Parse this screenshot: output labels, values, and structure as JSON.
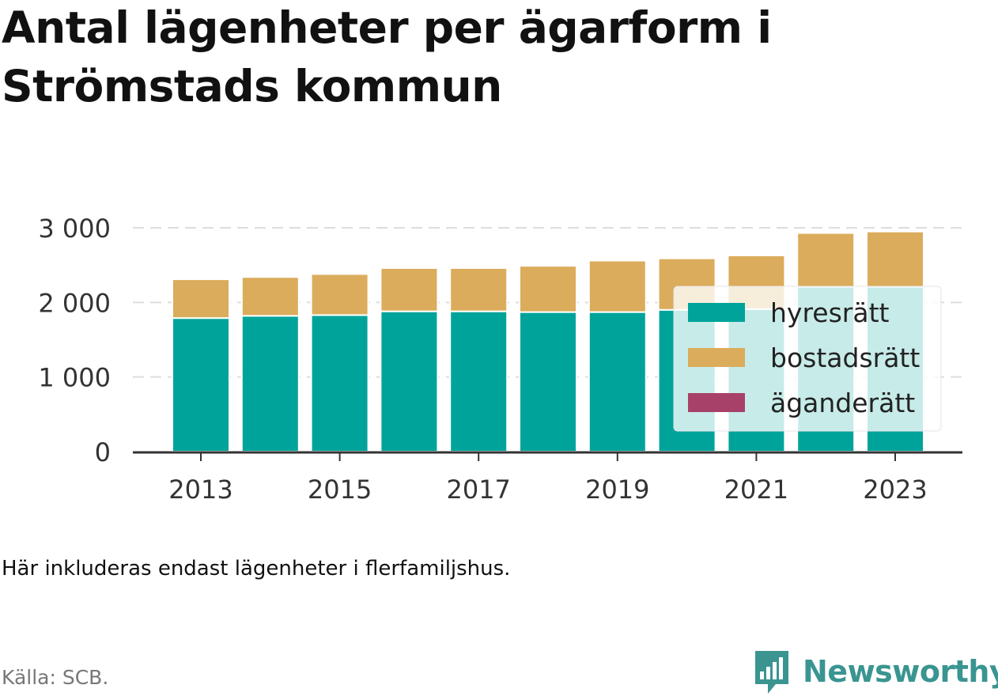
{
  "title": "Antal lägenheter per ägarform i Strömstads kommun",
  "note": "Här inkluderas endast lägenheter i flerfamiljshus.",
  "source": "Källa: SCB.",
  "brand": {
    "name": "Newsworthy",
    "icon": "newsworthy-logo-icon",
    "color": "#3a9591"
  },
  "chart_data": {
    "type": "bar",
    "stacked": true,
    "categories": [
      "2013",
      "2014",
      "2015",
      "2016",
      "2017",
      "2018",
      "2019",
      "2020",
      "2021",
      "2022",
      "2023"
    ],
    "x_tick_labels": [
      "2013",
      "2015",
      "2017",
      "2019",
      "2021",
      "2023"
    ],
    "y_tick_labels": [
      "0",
      "1 000",
      "2 000",
      "3 000"
    ],
    "y_ticks": [
      0,
      1000,
      2000,
      3000
    ],
    "ylim": [
      0,
      3000
    ],
    "grid": true,
    "legend_position": "right",
    "series": [
      {
        "name": "hyresrätt",
        "color": "#00a39a",
        "values": [
          1790,
          1820,
          1830,
          1880,
          1880,
          1870,
          1870,
          1900,
          1910,
          2210,
          2210
        ]
      },
      {
        "name": "bostadsrätt",
        "color": "#dbac5b",
        "values": [
          520,
          520,
          550,
          580,
          580,
          620,
          690,
          690,
          720,
          720,
          740
        ]
      },
      {
        "name": "äganderätt",
        "color": "#a8416a",
        "values": [
          0,
          0,
          0,
          0,
          0,
          0,
          0,
          0,
          0,
          0,
          0
        ]
      }
    ]
  }
}
